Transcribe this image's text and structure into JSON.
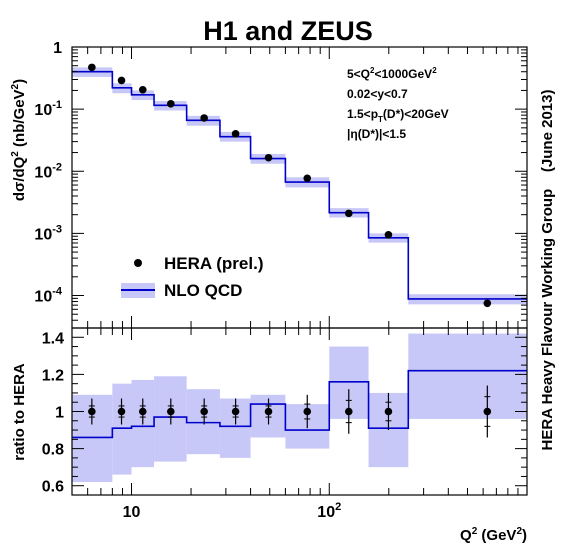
{
  "chart_data": [
    {
      "type": "step-line",
      "title": "H1 and ZEUS",
      "xlabel": "Q",
      "xlabel_sup": "2",
      "xlabel_unit_pre": " (GeV",
      "xlabel_unit_sup": "2",
      "xlabel_unit_post": ")",
      "ylabel": "dσ/dQ",
      "ylabel_sup": "2",
      "ylabel_unit_pre": " (nb/GeV",
      "ylabel_unit_sup": "2",
      "ylabel_unit_post": ")",
      "xscale": "log",
      "yscale": "log",
      "xlim": [
        5,
        1000
      ],
      "ylim": [
        3e-05,
        1
      ],
      "yticks": [
        {
          "mant": "1",
          "exp": ""
        },
        {
          "mant": "10",
          "exp": "-1"
        },
        {
          "mant": "10",
          "exp": "-2"
        },
        {
          "mant": "10",
          "exp": "-3"
        },
        {
          "mant": "10",
          "exp": "-4"
        }
      ],
      "bin_edges": [
        5,
        8,
        10,
        13,
        19,
        28,
        40,
        60,
        100,
        158,
        251,
        1000
      ],
      "series": [
        {
          "name": "NLO QCD",
          "type": "step",
          "color": "#0000cc",
          "band_color": "#c8c8f8",
          "values": [
            0.4,
            0.22,
            0.17,
            0.115,
            0.066,
            0.036,
            0.016,
            0.0067,
            0.00215,
            0.00085,
            8.8e-05
          ],
          "band_low": [
            0.33,
            0.18,
            0.14,
            0.095,
            0.054,
            0.03,
            0.0132,
            0.0055,
            0.0018,
            0.00071,
            7.2e-05
          ],
          "band_high": [
            0.47,
            0.26,
            0.2,
            0.135,
            0.078,
            0.043,
            0.019,
            0.008,
            0.00255,
            0.001,
            0.000105
          ]
        },
        {
          "name": "HERA (prel.)",
          "type": "scatter",
          "color": "#000000",
          "x": [
            6.3,
            8.9,
            11.4,
            15.8,
            23.3,
            33.6,
            49.3,
            77.4,
            125.5,
            199.2,
            630
          ],
          "y": [
            0.47,
            0.29,
            0.205,
            0.122,
            0.072,
            0.04,
            0.0165,
            0.0077,
            0.0021,
            0.00095,
            7.5e-05
          ]
        }
      ],
      "annotations": [
        {
          "parts": [
            {
              "t": "5<Q"
            },
            {
              "t": "2",
              "sup": true
            },
            {
              "t": "<1000GeV"
            },
            {
              "t": "2",
              "sup": true
            }
          ]
        },
        {
          "parts": [
            {
              "t": "0.02<y<0.7"
            }
          ]
        },
        {
          "parts": [
            {
              "t": "1.5<p"
            },
            {
              "t": "T",
              "sub": true
            },
            {
              "t": "(D*)<20GeV"
            }
          ]
        },
        {
          "parts": [
            {
              "t": "|η(D*)|<1.5"
            }
          ]
        }
      ],
      "legend_position": "bottom-left"
    },
    {
      "type": "step-line",
      "ylabel": "ratio to HERA",
      "xscale": "log",
      "xlim": [
        5,
        1000
      ],
      "ylim": [
        0.55,
        1.45
      ],
      "xticks": [
        {
          "value": 10,
          "mant": "10",
          "exp": ""
        },
        {
          "value": 100,
          "mant": "10",
          "exp": "2"
        }
      ],
      "yticks": [
        "0.6",
        "0.8",
        "1",
        "1.2",
        "1.4"
      ],
      "bin_edges": [
        5,
        8,
        10,
        13,
        19,
        28,
        40,
        60,
        100,
        158,
        251,
        1000
      ],
      "series": [
        {
          "name": "NLO QCD",
          "type": "step",
          "color": "#0000cc",
          "band_color": "#c8c8f8",
          "values": [
            0.86,
            0.91,
            0.92,
            0.97,
            0.94,
            0.92,
            1.04,
            0.9,
            1.16,
            0.91,
            1.22
          ],
          "band_low": [
            0.62,
            0.66,
            0.7,
            0.73,
            0.77,
            0.75,
            0.86,
            0.8,
            0.96,
            0.7,
            0.96
          ],
          "band_high": [
            1.09,
            1.15,
            1.17,
            1.19,
            1.12,
            1.07,
            1.09,
            1.04,
            1.35,
            1.1,
            1.42
          ]
        },
        {
          "name": "HERA (prel.)",
          "type": "scatter",
          "color": "#000000",
          "x": [
            6.3,
            8.9,
            11.4,
            15.8,
            23.3,
            33.6,
            49.3,
            77.4,
            125.5,
            199.2,
            630
          ],
          "y": [
            1,
            1,
            1,
            1,
            1,
            1,
            1,
            1,
            1,
            1,
            1
          ],
          "err_low": [
            0.07,
            0.07,
            0.07,
            0.07,
            0.07,
            0.07,
            0.07,
            0.09,
            0.12,
            0.1,
            0.14
          ],
          "err_high": [
            0.07,
            0.07,
            0.07,
            0.07,
            0.07,
            0.07,
            0.07,
            0.09,
            0.12,
            0.1,
            0.14
          ],
          "err_stat_low": [
            0.03,
            0.03,
            0.03,
            0.03,
            0.03,
            0.03,
            0.03,
            0.04,
            0.06,
            0.05,
            0.08
          ],
          "err_stat_high": [
            0.03,
            0.03,
            0.03,
            0.03,
            0.03,
            0.03,
            0.03,
            0.04,
            0.06,
            0.05,
            0.08
          ]
        }
      ]
    }
  ],
  "side_label": "HERA Heavy Flavour Working Group    (June 2013)"
}
